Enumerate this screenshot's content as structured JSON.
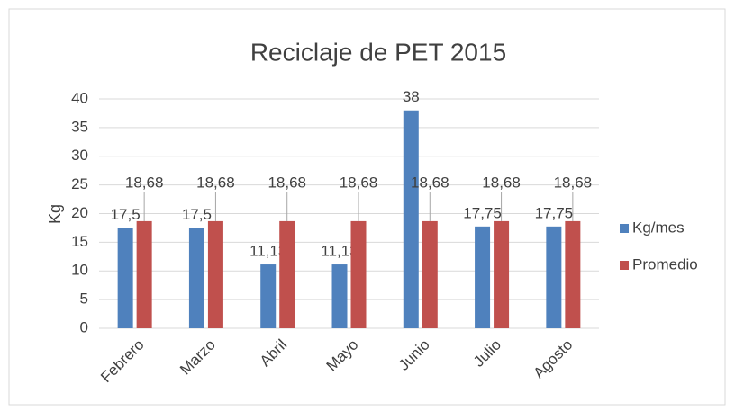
{
  "chart_data": {
    "type": "bar",
    "title": "Reciclaje de PET 2015",
    "y_label": "Kg",
    "categories": [
      "Febrero",
      "Marzo",
      "Abril",
      "Mayo",
      "Junio",
      "Julio",
      "Agosto"
    ],
    "series": [
      {
        "name": "Kg/mes",
        "color": "#4f81bd",
        "values": [
          17.5,
          17.5,
          11.13,
          11.13,
          38,
          17.75,
          17.75
        ],
        "value_labels": [
          "17,5",
          "17,5",
          "11,13",
          "11,13",
          "38",
          "17,75",
          "17,75"
        ]
      },
      {
        "name": "Promedio",
        "color": "#c0504d",
        "values": [
          18.68,
          18.68,
          18.68,
          18.68,
          18.68,
          18.68,
          18.68
        ],
        "value_labels": [
          "18,68",
          "18,68",
          "18,68",
          "18,68",
          "18,68",
          "18,68",
          "18,68"
        ]
      }
    ],
    "ylim": [
      0,
      40
    ],
    "yticks": [
      0,
      5,
      10,
      15,
      20,
      25,
      30,
      35,
      40
    ],
    "grid": true,
    "legend": "right"
  }
}
